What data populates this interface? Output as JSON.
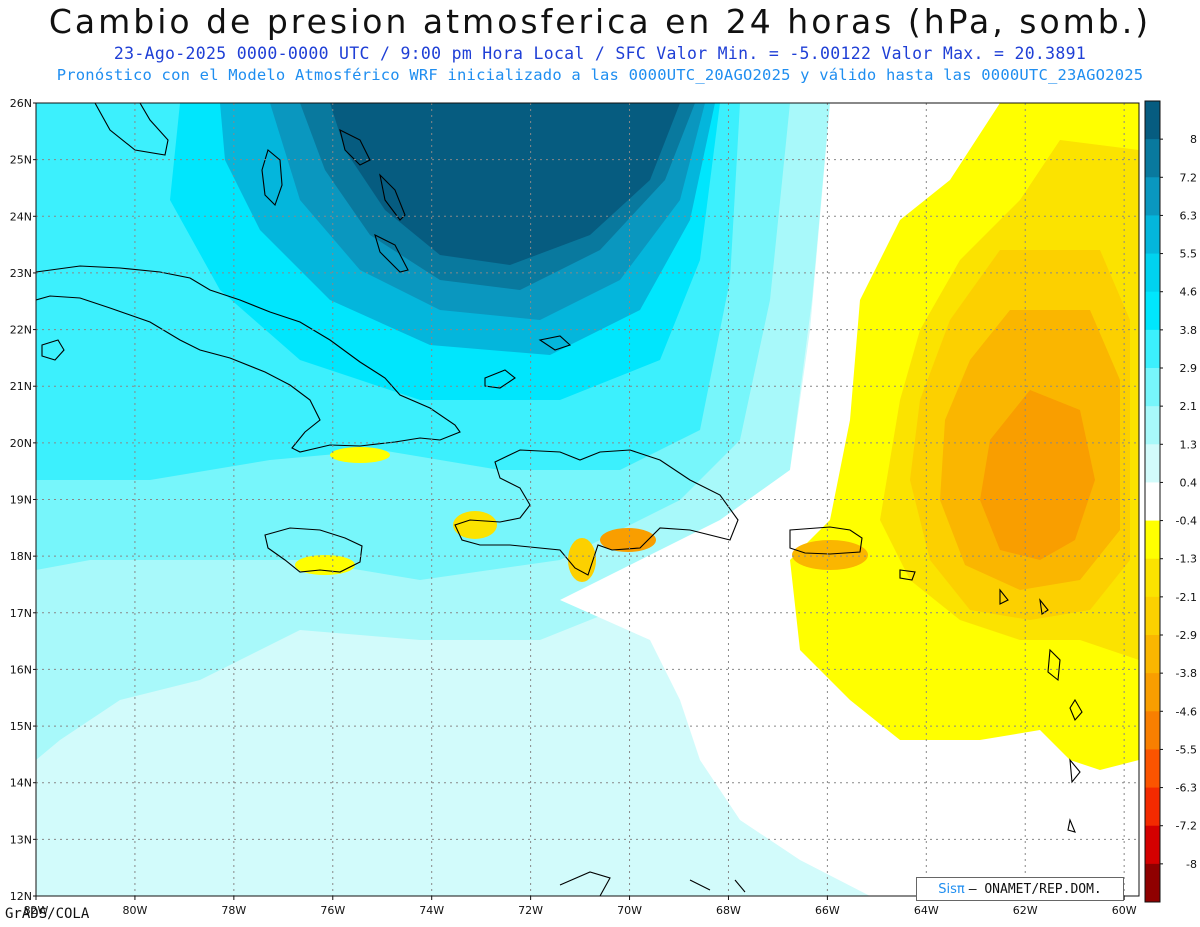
{
  "title": "Cambio de presion atmosferica en 24 horas (hPa, somb.)",
  "subtitle_line1": "23-Ago-2025   0000-0000 UTC / 9:00 pm Hora Local / SFC   Valor Min. = -5.00122  Valor Max. = 20.3891",
  "subtitle_line2": "Pronóstico con el Modelo Atmosférico WRF inicializado a las 0000UTC_20AGO2025 y válido hasta las  0000UTC_23AGO2025",
  "credit": {
    "logo_text": "Sisπ",
    "org": "— ONAMET/REP.DOM."
  },
  "software": "GrADS/COLA",
  "map": {
    "lon_range": [
      -82,
      -59.7
    ],
    "lat_range": [
      12,
      26
    ],
    "lat_ticks": [
      "26N",
      "25N",
      "24N",
      "23N",
      "22N",
      "21N",
      "20N",
      "19N",
      "18N",
      "17N",
      "16N",
      "15N",
      "14N",
      "13N",
      "12N"
    ],
    "lon_ticks": [
      "82W",
      "80W",
      "78W",
      "76W",
      "74W",
      "72W",
      "70W",
      "68W",
      "66W",
      "64W",
      "62W",
      "60W"
    ],
    "grid": true
  },
  "colorbar": {
    "labels": [
      "8",
      "7.2",
      "6.3",
      "5.5",
      "4.6",
      "3.8",
      "2.9",
      "2.1",
      "1.3",
      "0.4",
      "-0.4",
      "-1.3",
      "-2.1",
      "-2.9",
      "-3.8",
      "-4.6",
      "-5.5",
      "-6.3",
      "-7.2",
      "-8"
    ],
    "colors": [
      "#065c80",
      "#09799e",
      "#0a97bf",
      "#04b6dc",
      "#00d2ef",
      "#00e6fd",
      "#3cf0fd",
      "#77f6fb",
      "#a8f9fa",
      "#d2fbfb",
      "#ffffff",
      "#ffff00",
      "#fbe300",
      "#fcd000",
      "#fab600",
      "#f99e00",
      "#f97f00",
      "#fb5400",
      "#f32a00",
      "#d40000",
      "#8f0000"
    ]
  }
}
